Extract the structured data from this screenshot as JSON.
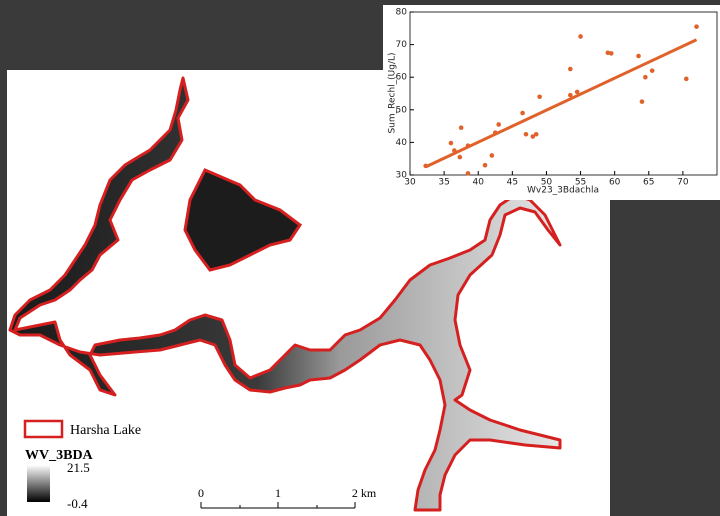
{
  "map": {
    "legend": {
      "outline_label": "Harsha Lake",
      "raster_title": "WV_3BDA",
      "raster_max": "21.5",
      "raster_min": "-0.4"
    },
    "scale_bar": {
      "labels": [
        "0",
        "1",
        "2 km"
      ]
    }
  },
  "chart_data": {
    "type": "scatter",
    "x_label": "Wv23_3Bdachla",
    "y_label": "Sum_Rechl_(Ug/L)",
    "points": {
      "color": "#e0622a",
      "x": [
        32.3,
        36,
        36.5,
        37.3,
        37.5,
        38.5,
        38.5,
        41,
        42,
        42.5,
        43,
        46.5,
        47,
        48,
        48.5,
        49,
        53.5,
        53.5,
        54.5,
        55,
        59,
        59.5,
        63.5,
        64,
        64.5,
        65.5,
        70.5,
        72
      ],
      "y": [
        32.8,
        39.8,
        37.5,
        35.5,
        44.5,
        39,
        30.5,
        33,
        36,
        43,
        45.5,
        49,
        42.5,
        41.8,
        42.5,
        54,
        62.5,
        54.5,
        55.5,
        72.5,
        67.5,
        67.3,
        66.5,
        52.5,
        60,
        62,
        59.5,
        75.5
      ]
    },
    "fit_line": {
      "color": "#e0622a",
      "x": [
        32.3,
        72
      ],
      "y": [
        32.5,
        71.5
      ]
    },
    "xlim": [
      30,
      75
    ],
    "ylim": [
      30,
      80
    ],
    "xticks": [
      30,
      35,
      40,
      45,
      50,
      55,
      60,
      65,
      70
    ],
    "yticks": [
      30,
      40,
      50,
      60,
      70,
      80
    ]
  }
}
